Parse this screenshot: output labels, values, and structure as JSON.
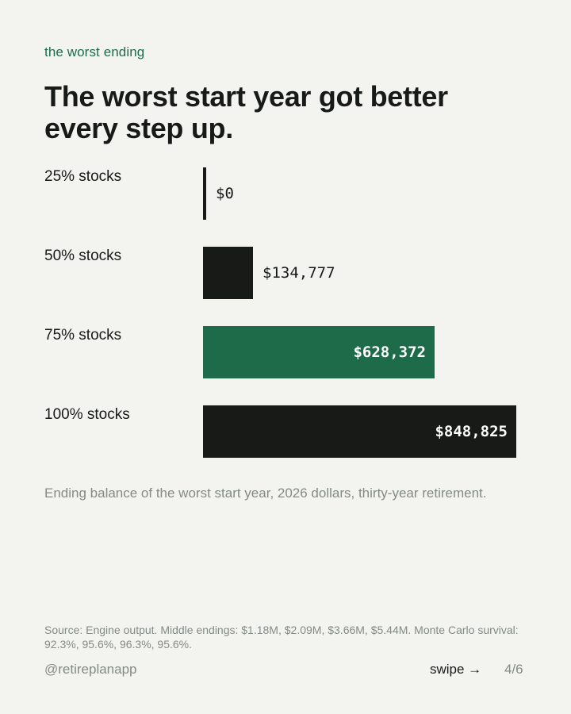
{
  "eyebrow": "the worst ending",
  "title": "The worst start year got better every step up.",
  "caption": "Ending balance of the worst start year, 2026 dollars, thirty-year retirement.",
  "source": "Source: Engine output. Middle endings: $1.18M, $2.09M, $3.66M, $5.44M. Monte Carlo survival: 92.3%, 95.6%, 96.3%, 95.6%.",
  "footer": {
    "handle": "@retireplanapp",
    "swipe": "swipe →",
    "page": "4/6"
  },
  "colors": {
    "dark": "#171a17",
    "accent": "#1e6b4a",
    "background": "#f3f4f0",
    "muted": "#858a85"
  },
  "chart_data": {
    "type": "bar",
    "orientation": "horizontal",
    "categories": [
      "25% stocks",
      "50% stocks",
      "75% stocks",
      "100% stocks"
    ],
    "values": [
      0,
      134777,
      628372,
      848825
    ],
    "value_labels": [
      "$0",
      "$134,777",
      "$628,372",
      "$848,825"
    ],
    "highlight_index": 2,
    "xlim": [
      0,
      848825
    ],
    "grid": false
  }
}
